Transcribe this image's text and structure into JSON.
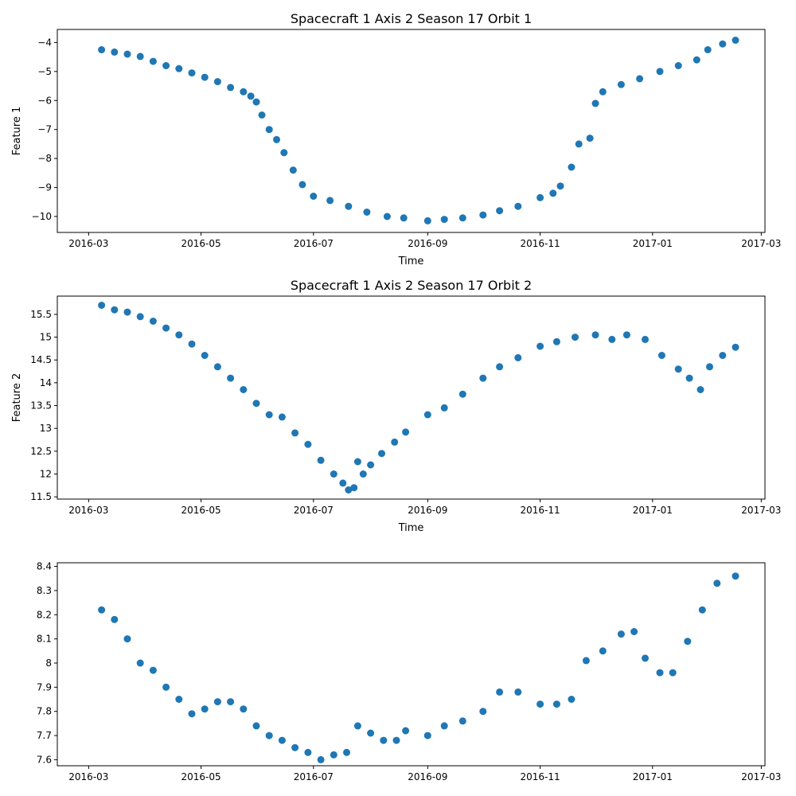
{
  "chart_data": [
    {
      "type": "scatter",
      "title": "Spacecraft 1 Axis 2 Season 17 Orbit 1",
      "xlabel": "Time",
      "ylabel": "Feature 1",
      "xlim": [
        "2016-02-13",
        "2017-03-03"
      ],
      "ylim": [
        -10.55,
        -3.55
      ],
      "xticks": [
        "2016-03",
        "2016-05",
        "2016-07",
        "2016-09",
        "2016-11",
        "2017-01",
        "2017-03"
      ],
      "yticks": [
        -10,
        -9,
        -8,
        -7,
        -6,
        -5,
        -4
      ],
      "color": "#1f77b4",
      "grid": false,
      "series": [
        {
          "x": [
            "2016-03-08",
            "2016-03-15",
            "2016-03-22",
            "2016-03-29",
            "2016-04-05",
            "2016-04-12",
            "2016-04-19",
            "2016-04-26",
            "2016-05-03",
            "2016-05-10",
            "2016-05-17",
            "2016-05-24",
            "2016-05-28",
            "2016-05-31",
            "2016-06-03",
            "2016-06-07",
            "2016-06-11",
            "2016-06-15",
            "2016-06-20",
            "2016-06-25",
            "2016-07-01",
            "2016-07-10",
            "2016-07-20",
            "2016-07-30",
            "2016-08-10",
            "2016-08-19",
            "2016-09-01",
            "2016-09-10",
            "2016-09-20",
            "2016-10-01",
            "2016-10-10",
            "2016-10-20",
            "2016-11-01",
            "2016-11-08",
            "2016-11-12",
            "2016-11-18",
            "2016-11-22",
            "2016-11-28",
            "2016-12-01",
            "2016-12-05",
            "2016-12-15",
            "2016-12-25",
            "2017-01-05",
            "2017-01-15",
            "2017-01-25",
            "2017-01-31",
            "2017-02-08",
            "2017-02-15"
          ],
          "y": [
            -4.25,
            -4.33,
            -4.4,
            -4.48,
            -4.65,
            -4.8,
            -4.9,
            -5.05,
            -5.2,
            -5.35,
            -5.55,
            -5.7,
            -5.85,
            -6.05,
            -6.5,
            -7.0,
            -7.35,
            -7.8,
            -8.4,
            -8.9,
            -9.3,
            -9.45,
            -9.65,
            -9.85,
            -10.0,
            -10.05,
            -10.15,
            -10.1,
            -10.05,
            -9.95,
            -9.8,
            -9.65,
            -9.35,
            -9.2,
            -8.95,
            -8.3,
            -7.5,
            -7.3,
            -6.1,
            -5.7,
            -5.45,
            -5.25,
            -5.0,
            -4.8,
            -4.6,
            -4.25,
            -4.05,
            -3.92
          ]
        }
      ]
    },
    {
      "type": "scatter",
      "title": "Spacecraft 1 Axis 2 Season 17 Orbit 2",
      "xlabel": "Time",
      "ylabel": "Feature 2",
      "xlim": [
        "2016-02-13",
        "2017-03-03"
      ],
      "ylim": [
        11.45,
        15.9
      ],
      "xticks": [
        "2016-03",
        "2016-05",
        "2016-07",
        "2016-09",
        "2016-11",
        "2017-01",
        "2017-03"
      ],
      "yticks": [
        11.5,
        12.0,
        12.5,
        13.0,
        13.5,
        14.0,
        14.5,
        15.0,
        15.5
      ],
      "color": "#1f77b4",
      "grid": false,
      "series": [
        {
          "x": [
            "2016-03-08",
            "2016-03-15",
            "2016-03-22",
            "2016-03-29",
            "2016-04-05",
            "2016-04-12",
            "2016-04-19",
            "2016-04-26",
            "2016-05-03",
            "2016-05-10",
            "2016-05-17",
            "2016-05-24",
            "2016-05-31",
            "2016-06-07",
            "2016-06-14",
            "2016-06-21",
            "2016-06-28",
            "2016-07-05",
            "2016-07-12",
            "2016-07-17",
            "2016-07-20",
            "2016-07-23",
            "2016-07-25",
            "2016-07-28",
            "2016-08-01",
            "2016-08-07",
            "2016-08-14",
            "2016-08-20",
            "2016-09-01",
            "2016-09-10",
            "2016-09-20",
            "2016-10-01",
            "2016-10-10",
            "2016-10-20",
            "2016-11-01",
            "2016-11-10",
            "2016-11-20",
            "2016-12-01",
            "2016-12-10",
            "2016-12-18",
            "2016-12-28",
            "2017-01-06",
            "2017-01-15",
            "2017-01-21",
            "2017-01-27",
            "2017-02-01",
            "2017-02-08",
            "2017-02-15"
          ],
          "y": [
            15.7,
            15.6,
            15.55,
            15.45,
            15.35,
            15.2,
            15.05,
            14.85,
            14.6,
            14.35,
            14.1,
            13.85,
            13.55,
            13.3,
            13.25,
            12.9,
            12.65,
            12.3,
            12.0,
            11.8,
            11.65,
            11.7,
            12.27,
            12.0,
            12.2,
            12.45,
            12.7,
            12.92,
            13.3,
            13.45,
            13.75,
            14.1,
            14.35,
            14.55,
            14.8,
            14.9,
            15.0,
            15.05,
            14.95,
            15.05,
            14.95,
            14.6,
            14.3,
            14.1,
            13.85,
            14.35,
            14.6,
            14.78
          ]
        }
      ]
    },
    {
      "type": "scatter",
      "title": "",
      "xlabel": "",
      "ylabel": "",
      "xlim": [
        "2016-02-13",
        "2017-03-03"
      ],
      "ylim": [
        7.575,
        8.415
      ],
      "xticks": [
        "2016-03",
        "2016-05",
        "2016-07",
        "2016-09",
        "2016-11",
        "2017-01",
        "2017-03"
      ],
      "yticks": [
        7.6,
        7.7,
        7.8,
        7.9,
        8.0,
        8.1,
        8.2,
        8.3,
        8.4
      ],
      "color": "#1f77b4",
      "grid": false,
      "series": [
        {
          "x": [
            "2016-03-08",
            "2016-03-15",
            "2016-03-22",
            "2016-03-29",
            "2016-04-05",
            "2016-04-12",
            "2016-04-19",
            "2016-04-26",
            "2016-05-03",
            "2016-05-10",
            "2016-05-17",
            "2016-05-24",
            "2016-05-31",
            "2016-06-07",
            "2016-06-14",
            "2016-06-21",
            "2016-06-28",
            "2016-07-05",
            "2016-07-12",
            "2016-07-19",
            "2016-07-25",
            "2016-08-01",
            "2016-08-08",
            "2016-08-15",
            "2016-08-20",
            "2016-09-01",
            "2016-09-10",
            "2016-09-20",
            "2016-10-01",
            "2016-10-10",
            "2016-10-20",
            "2016-11-01",
            "2016-11-10",
            "2016-11-18",
            "2016-11-26",
            "2016-12-05",
            "2016-12-15",
            "2016-12-22",
            "2016-12-28",
            "2017-01-05",
            "2017-01-12",
            "2017-01-20",
            "2017-01-28",
            "2017-02-05",
            "2017-02-15"
          ],
          "y": [
            8.22,
            8.18,
            8.1,
            8.0,
            7.97,
            7.9,
            7.85,
            7.79,
            7.81,
            7.84,
            7.84,
            7.81,
            7.74,
            7.7,
            7.68,
            7.65,
            7.63,
            7.6,
            7.62,
            7.63,
            7.74,
            7.71,
            7.68,
            7.68,
            7.72,
            7.7,
            7.74,
            7.76,
            7.8,
            7.88,
            7.88,
            7.83,
            7.83,
            7.85,
            8.01,
            8.05,
            8.12,
            8.13,
            8.02,
            7.96,
            7.96,
            8.09,
            8.22,
            8.33,
            8.36
          ]
        }
      ]
    }
  ]
}
